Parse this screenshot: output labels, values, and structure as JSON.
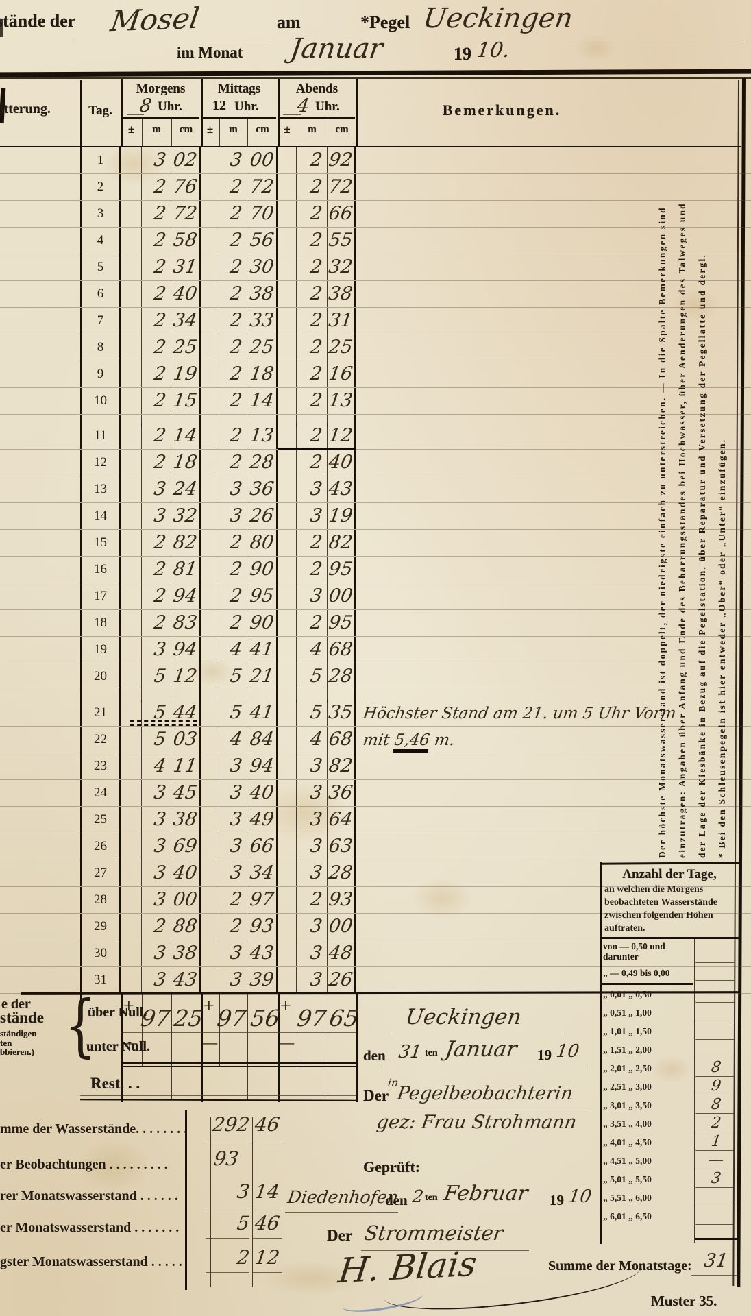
{
  "header": {
    "prefix": "stände der",
    "river": "Mosel",
    "am_label": "am",
    "pegel_label": "*Pegel",
    "station": "Ueckingen",
    "monat_label": "im Monat",
    "month": "Januar",
    "year_printed": "19",
    "year_script": "10."
  },
  "table": {
    "witterung_label": "itterung.",
    "tag_label": "Tag.",
    "groups": [
      {
        "name": "Morgens",
        "hour": "8",
        "uhr": "Uhr."
      },
      {
        "name": "Mittags",
        "hour": "12",
        "uhr": "Uhr."
      },
      {
        "name": "Abends",
        "hour": "4",
        "uhr": "Uhr."
      }
    ],
    "pm_label": "±",
    "m_label": "m",
    "cm_label": "cm",
    "bemerkungen_label": "Bemerkungen.",
    "remark_line1": "Höchster Stand am 21. um 5 Uhr Vorm",
    "remark2_prefix": "mit ",
    "remark2_value": "5,46",
    "remark2_suffix": " m.",
    "rows": [
      {
        "d": "1",
        "v": [
          "3",
          "02",
          "3",
          "00",
          "2",
          "92"
        ]
      },
      {
        "d": "2",
        "v": [
          "2",
          "76",
          "2",
          "72",
          "2",
          "72"
        ]
      },
      {
        "d": "3",
        "v": [
          "2",
          "72",
          "2",
          "70",
          "2",
          "66"
        ]
      },
      {
        "d": "4",
        "v": [
          "2",
          "58",
          "2",
          "56",
          "2",
          "55"
        ]
      },
      {
        "d": "5",
        "v": [
          "2",
          "31",
          "2",
          "30",
          "2",
          "32"
        ]
      },
      {
        "d": "6",
        "v": [
          "2",
          "40",
          "2",
          "38",
          "2",
          "38"
        ]
      },
      {
        "d": "7",
        "v": [
          "2",
          "34",
          "2",
          "33",
          "2",
          "31"
        ]
      },
      {
        "d": "8",
        "v": [
          "2",
          "25",
          "2",
          "25",
          "2",
          "25"
        ]
      },
      {
        "d": "9",
        "v": [
          "2",
          "19",
          "2",
          "18",
          "2",
          "16"
        ]
      },
      {
        "d": "10",
        "v": [
          "2",
          "15",
          "2",
          "14",
          "2",
          "13"
        ]
      },
      {
        "d": "11",
        "v": [
          "2",
          "14",
          "2",
          "13",
          "2",
          "12"
        ]
      },
      {
        "d": "12",
        "v": [
          "2",
          "18",
          "2",
          "28",
          "2",
          "40"
        ]
      },
      {
        "d": "13",
        "v": [
          "3",
          "24",
          "3",
          "36",
          "3",
          "43"
        ]
      },
      {
        "d": "14",
        "v": [
          "3",
          "32",
          "3",
          "26",
          "3",
          "19"
        ]
      },
      {
        "d": "15",
        "v": [
          "2",
          "82",
          "2",
          "80",
          "2",
          "82"
        ]
      },
      {
        "d": "16",
        "v": [
          "2",
          "81",
          "2",
          "90",
          "2",
          "95"
        ]
      },
      {
        "d": "17",
        "v": [
          "2",
          "94",
          "2",
          "95",
          "3",
          "00"
        ]
      },
      {
        "d": "18",
        "v": [
          "2",
          "83",
          "2",
          "90",
          "2",
          "95"
        ]
      },
      {
        "d": "19",
        "v": [
          "3",
          "94",
          "4",
          "41",
          "4",
          "68"
        ]
      },
      {
        "d": "20",
        "v": [
          "5",
          "12",
          "5",
          "21",
          "5",
          "28"
        ]
      },
      {
        "d": "21",
        "v": [
          "5",
          "44",
          "5",
          "41",
          "5",
          "35"
        ]
      },
      {
        "d": "22",
        "v": [
          "5",
          "03",
          "4",
          "84",
          "4",
          "68"
        ]
      },
      {
        "d": "23",
        "v": [
          "4",
          "11",
          "3",
          "94",
          "3",
          "82"
        ]
      },
      {
        "d": "24",
        "v": [
          "3",
          "45",
          "3",
          "40",
          "3",
          "36"
        ]
      },
      {
        "d": "25",
        "v": [
          "3",
          "38",
          "3",
          "49",
          "3",
          "64"
        ]
      },
      {
        "d": "26",
        "v": [
          "3",
          "69",
          "3",
          "66",
          "3",
          "63"
        ]
      },
      {
        "d": "27",
        "v": [
          "3",
          "40",
          "3",
          "34",
          "3",
          "28"
        ]
      },
      {
        "d": "28",
        "v": [
          "3",
          "00",
          "2",
          "97",
          "2",
          "93"
        ]
      },
      {
        "d": "29",
        "v": [
          "2",
          "88",
          "2",
          "93",
          "3",
          "00"
        ]
      },
      {
        "d": "30",
        "v": [
          "3",
          "38",
          "3",
          "43",
          "3",
          "48"
        ]
      },
      {
        "d": "31",
        "v": [
          "3",
          "43",
          "3",
          "39",
          "3",
          "26"
        ]
      }
    ]
  },
  "sums": {
    "frag1": "e der",
    "frag2": "stände",
    "frag3": "ständigen",
    "frag4": "ten",
    "frag5": "bbieren.)",
    "brace": "{",
    "ueber": "über Null.",
    "unter": "unter Null.",
    "rest": "Rest. . .",
    "plus": "+",
    "minus": "—",
    "morgens_m": "97",
    "morgens_cm": "25",
    "mittags_m": "97",
    "mittags_cm": "56",
    "abends_m": "97",
    "abends_cm": "65"
  },
  "side_note": {
    "lines": [
      "Der höchste Monatswasserstand ist doppelt, der niedrigste einfach zu unterstreichen. — In die Spalte Bemerkungen sind",
      "einzutragen: Angaben über Anfang und Ende des Beharrungsstandes bei Hochwasser, über Aenderungen des Talweges und",
      "der Lage der Kiesbänke in Bezug auf die Pegelstation, über Reparatur und Versetzung der Pegellatte und dergl.",
      "* Bei den Schleusenpegeln ist hier entweder „Ober“ oder „Unter“ einzufügen."
    ]
  },
  "stats": [
    {
      "label": "mme der Wasserstände. . . . . . . .",
      "m": "292",
      "cm": "46"
    },
    {
      "label": "er Beobachtungen . . . . . . . . .",
      "m": "93",
      "cm": ""
    },
    {
      "label": "rer Monatswasserstand . . . . . .",
      "m": "3",
      "cm": "14"
    },
    {
      "label": "er Monatswasserstand . . . . . . .",
      "m": "5",
      "cm": "46"
    },
    {
      "label": "gster Monatswasserstand . . . . .",
      "m": "2",
      "cm": "12"
    }
  ],
  "sign": {
    "station": "Ueckingen",
    "den": "den",
    "day": "31",
    "ten": "ten",
    "month": "Januar",
    "y19": "19",
    "y10": "10",
    "der": "Der",
    "insup": "in",
    "role": "Pegelbeobachterin",
    "gez": "gez: Frau Strohmann",
    "geprueft": "Geprüft:",
    "place": "Diedenhofen",
    "den2": "den",
    "day2": "2",
    "ten2": "ten",
    "month2": "Februar",
    "y19b": "19",
    "y10b": "10",
    "der2": "Der",
    "role2": "Strommeister",
    "signature": "H. Blais",
    "muster": "Muster 35."
  },
  "days_box": {
    "title": "Anzahl der Tage,",
    "subtitle": "an welchen die Morgens beobachteten Wasserstände zwischen folgenden Höhen auftraten.",
    "rows": [
      {
        "label": "von — 0,50 und darunter",
        "value": ""
      },
      {
        "label": "„  — 0,49 bis 0,00",
        "value": ""
      },
      {
        "label": "„   0,01  „  0,50",
        "value": ""
      },
      {
        "label": "„   0,51  „  1,00",
        "value": ""
      },
      {
        "label": "„   1,01  „  1,50",
        "value": ""
      },
      {
        "label": "„   1,51  „  2,00",
        "value": ""
      },
      {
        "label": "„   2,01  „  2,50",
        "value": "8"
      },
      {
        "label": "„   2,51  „  3,00",
        "value": "9"
      },
      {
        "label": "„   3,01  „  3,50",
        "value": "8"
      },
      {
        "label": "„   3,51  „  4,00",
        "value": "2"
      },
      {
        "label": "„   4,01  „  4,50",
        "value": "1"
      },
      {
        "label": "„   4,51  „  5,00",
        "value": "—"
      },
      {
        "label": "„   5,01  „  5,50",
        "value": "3"
      },
      {
        "label": "„   5,51  „  6,00",
        "value": ""
      },
      {
        "label": "„   6,01  „  6,50",
        "value": ""
      }
    ],
    "sum_label": "Summe der Monatstage:",
    "sum_value": "31"
  }
}
